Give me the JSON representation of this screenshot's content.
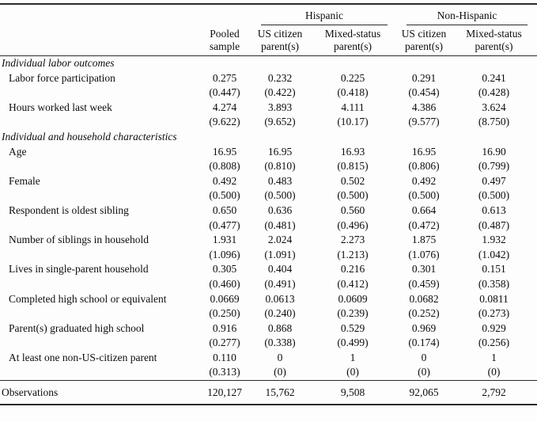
{
  "table": {
    "col_groups": [
      {
        "label": "Hispanic"
      },
      {
        "label": "Non-Hispanic"
      }
    ],
    "col_headers": [
      "Pooled sample",
      "US citizen parent(s)",
      "Mixed-status parent(s)",
      "US citizen parent(s)",
      "Mixed-status parent(s)"
    ],
    "sections": [
      {
        "title": "Individual labor outcomes",
        "rows": [
          {
            "label": "Labor force participation",
            "means": [
              "0.275",
              "0.232",
              "0.225",
              "0.291",
              "0.241"
            ],
            "sds": [
              "(0.447)",
              "(0.422)",
              "(0.418)",
              "(0.454)",
              "(0.428)"
            ]
          },
          {
            "label": "Hours worked last week",
            "means": [
              "4.274",
              "3.893",
              "4.111",
              "4.386",
              "3.624"
            ],
            "sds": [
              "(9.622)",
              "(9.652)",
              "(10.17)",
              "(9.577)",
              "(8.750)"
            ]
          }
        ]
      },
      {
        "title": "Individual and household characteristics",
        "rows": [
          {
            "label": "Age",
            "means": [
              "16.95",
              "16.95",
              "16.93",
              "16.95",
              "16.90"
            ],
            "sds": [
              "(0.808)",
              "(0.810)",
              "(0.815)",
              "(0.806)",
              "(0.799)"
            ]
          },
          {
            "label": "Female",
            "means": [
              "0.492",
              "0.483",
              "0.502",
              "0.492",
              "0.497"
            ],
            "sds": [
              "(0.500)",
              "(0.500)",
              "(0.500)",
              "(0.500)",
              "(0.500)"
            ]
          },
          {
            "label": "Respondent is oldest sibling",
            "means": [
              "0.650",
              "0.636",
              "0.560",
              "0.664",
              "0.613"
            ],
            "sds": [
              "(0.477)",
              "(0.481)",
              "(0.496)",
              "(0.472)",
              "(0.487)"
            ]
          },
          {
            "label": "Number of siblings in household",
            "means": [
              "1.931",
              "2.024",
              "2.273",
              "1.875",
              "1.932"
            ],
            "sds": [
              "(1.096)",
              "(1.091)",
              "(1.213)",
              "(1.076)",
              "(1.042)"
            ]
          },
          {
            "label": "Lives in single-parent household",
            "means": [
              "0.305",
              "0.404",
              "0.216",
              "0.301",
              "0.151"
            ],
            "sds": [
              "(0.460)",
              "(0.491)",
              "(0.412)",
              "(0.459)",
              "(0.358)"
            ]
          },
          {
            "label": "Completed high school or equivalent",
            "means": [
              "0.0669",
              "0.0613",
              "0.0609",
              "0.0682",
              "0.0811"
            ],
            "sds": [
              "(0.250)",
              "(0.240)",
              "(0.239)",
              "(0.252)",
              "(0.273)"
            ]
          },
          {
            "label": "Parent(s) graduated high school",
            "means": [
              "0.916",
              "0.868",
              "0.529",
              "0.969",
              "0.929"
            ],
            "sds": [
              "(0.277)",
              "(0.338)",
              "(0.499)",
              "(0.174)",
              "(0.256)"
            ]
          },
          {
            "label": "At least one non-US-citizen parent",
            "means": [
              "0.110",
              "0",
              "1",
              "0",
              "1"
            ],
            "sds": [
              "(0.313)",
              "(0)",
              "(0)",
              "(0)",
              "(0)"
            ]
          }
        ]
      }
    ],
    "footer": {
      "label": "Observations",
      "values": [
        "120,127",
        "15,762",
        "9,508",
        "92,065",
        "2,792"
      ]
    }
  }
}
